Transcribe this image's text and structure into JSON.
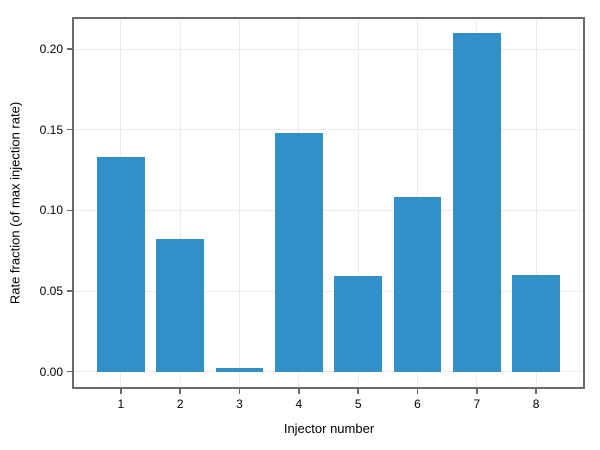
{
  "chart_data": {
    "type": "bar",
    "title": "",
    "xlabel": "Injector number",
    "ylabel": "Rate fraction (of max injection rate)",
    "categories": [
      "1",
      "2",
      "3",
      "4",
      "5",
      "6",
      "7",
      "8"
    ],
    "values": [
      0.133,
      0.082,
      0.002,
      0.148,
      0.059,
      0.108,
      0.21,
      0.06
    ],
    "yticks": [
      0.0,
      0.05,
      0.1,
      0.15,
      0.2
    ],
    "ytick_labels": [
      "0.00",
      "0.05",
      "0.10",
      "0.15",
      "0.20"
    ],
    "ylim": [
      -0.0095,
      0.2186
    ],
    "xlim": [
      0.21,
      8.79
    ],
    "bar_width_units": 0.8,
    "grid": "both",
    "legend": "none",
    "colors": {
      "bar": "#3290c8",
      "spine": "#6a6a6a",
      "grid": "#ebebeb",
      "text": "#000000",
      "background": "#ffffff"
    }
  }
}
